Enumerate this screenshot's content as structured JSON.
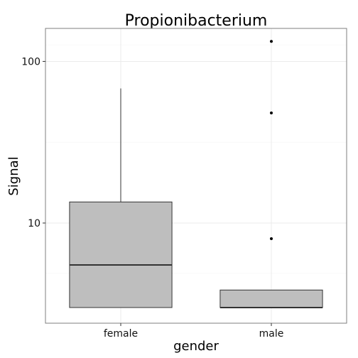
{
  "chart_data": {
    "type": "box",
    "title": "Propionibacterium",
    "xlabel": "gender",
    "ylabel": "Signal",
    "y_scale": "log10",
    "ylim": [
      2.4,
      160
    ],
    "y_ticks": [
      10,
      100
    ],
    "y_tick_labels": [
      "10",
      "100"
    ],
    "categories": [
      "female",
      "male"
    ],
    "boxes": [
      {
        "category": "female",
        "lower_whisker": 3.0,
        "q1": 3.0,
        "median": 5.5,
        "q3": 13.5,
        "upper_whisker": 68,
        "outliers": []
      },
      {
        "category": "male",
        "lower_whisker": 3.0,
        "q1": 3.0,
        "median": 3.0,
        "q3": 3.85,
        "upper_whisker": 3.85,
        "outliers": [
          8,
          48,
          133
        ]
      }
    ],
    "grid": true,
    "legend": "none",
    "colors": {
      "box_fill": "#bebebe",
      "box_stroke": "#333333",
      "grid": "#ebebeb",
      "panel_border": "#7f7f7f"
    }
  }
}
